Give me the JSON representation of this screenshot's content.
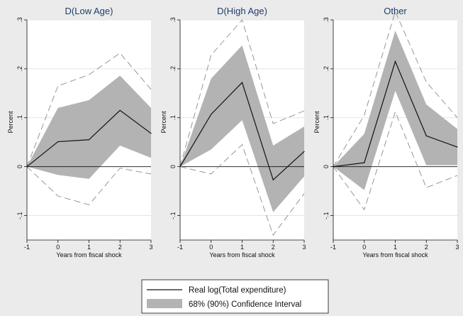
{
  "chart_data": [
    {
      "type": "line",
      "title": "D(Low Age)",
      "xlabel": "",
      "ylabel": "Percent",
      "x": [
        -1,
        0,
        1,
        2,
        3
      ],
      "xlim": [
        -1,
        3
      ],
      "ylim": [
        -0.15,
        0.3
      ],
      "yticks": [
        -0.1,
        0,
        0.1,
        0.2,
        0.3
      ],
      "ytick_labels": [
        "-.1",
        "0",
        ".1",
        ".2",
        ".3"
      ],
      "xticks": [
        -1,
        0,
        1,
        2,
        3
      ],
      "xtick_labels": [
        "-1",
        "0",
        "1",
        "2",
        "3"
      ],
      "zero_line": true,
      "series": [
        {
          "name": "Real log(Total expenditure)",
          "values": [
            0,
            0.051,
            0.055,
            0.115,
            0.068
          ]
        },
        {
          "name": "68% (90%) Confidence Interval",
          "role": "band68",
          "lower": [
            0,
            -0.017,
            -0.025,
            0.043,
            0.018
          ],
          "upper": [
            0,
            0.12,
            0.136,
            0.186,
            0.12
          ]
        },
        {
          "name": "",
          "role": "band90",
          "lower": [
            0,
            -0.06,
            -0.078,
            -0.003,
            -0.015
          ],
          "upper": [
            0,
            0.165,
            0.188,
            0.232,
            0.158
          ]
        }
      ]
    },
    {
      "type": "line",
      "title": "D(High Age)",
      "xlabel": "",
      "ylabel": "Percent",
      "x": [
        -1,
        0,
        1,
        2,
        3
      ],
      "xlim": [
        -1,
        3
      ],
      "ylim": [
        -0.15,
        0.3
      ],
      "yticks": [
        -0.1,
        0,
        0.1,
        0.2,
        0.3
      ],
      "ytick_labels": [
        "-.1",
        "0",
        ".1",
        ".2",
        ".3"
      ],
      "xticks": [
        -1,
        0,
        1,
        2,
        3
      ],
      "xtick_labels": [
        "-1",
        "0",
        "1",
        "2",
        "3"
      ],
      "zero_line": true,
      "series": [
        {
          "name": "Real log(Total expenditure)",
          "values": [
            0,
            0.107,
            0.172,
            -0.027,
            0.031
          ]
        },
        {
          "name": "68% (90%) Confidence Interval",
          "role": "band68",
          "lower": [
            0,
            0.035,
            0.095,
            -0.093,
            -0.02
          ],
          "upper": [
            0,
            0.18,
            0.248,
            0.043,
            0.082
          ]
        },
        {
          "name": "",
          "role": "band90",
          "lower": [
            0,
            -0.015,
            0.045,
            -0.14,
            -0.055
          ],
          "upper": [
            0,
            0.228,
            0.3,
            0.088,
            0.114
          ]
        }
      ]
    },
    {
      "type": "line",
      "title": "Other",
      "xlabel": "Years from fiscal shock",
      "ylabel": "Percent",
      "x": [
        -1,
        0,
        1,
        2,
        3
      ],
      "xlim": [
        -1,
        3
      ],
      "ylim": [
        -0.15,
        0.3
      ],
      "yticks": [
        -0.1,
        0,
        0.1,
        0.2,
        0.3
      ],
      "ytick_labels": [
        "-.1",
        "0",
        ".1",
        ".2",
        ".3"
      ],
      "xticks": [
        -1,
        0,
        1,
        2,
        3
      ],
      "xtick_labels": [
        "-1",
        "0",
        "1",
        "2",
        "3"
      ],
      "zero_line": true,
      "series": [
        {
          "name": "Real log(Total expenditure)",
          "values": [
            0,
            0.008,
            0.215,
            0.063,
            0.04
          ]
        },
        {
          "name": "68% (90%) Confidence Interval",
          "role": "band68",
          "lower": [
            0,
            -0.048,
            0.155,
            0.003,
            0.003
          ],
          "upper": [
            0,
            0.067,
            0.278,
            0.127,
            0.077
          ]
        },
        {
          "name": "",
          "role": "band90",
          "lower": [
            0,
            -0.088,
            0.112,
            -0.043,
            -0.018
          ],
          "upper": [
            0,
            0.105,
            0.317,
            0.173,
            0.1
          ]
        }
      ]
    }
  ],
  "panel_xlabels": [
    "Years from fiscal shock",
    "Years from fiscal shock",
    "Years from fiscal shock"
  ],
  "legend": {
    "line_label": "Real log(Total expenditure)",
    "band_label": "68% (90%) Confidence Interval"
  },
  "colors": {
    "background": "#ebebeb",
    "plot_area": "#ffffff",
    "band": "#b3b3b3",
    "line": "#111111",
    "ci90": "#8c8c8c",
    "grid": "#e4e4e4",
    "title": "#1e3d6b"
  }
}
